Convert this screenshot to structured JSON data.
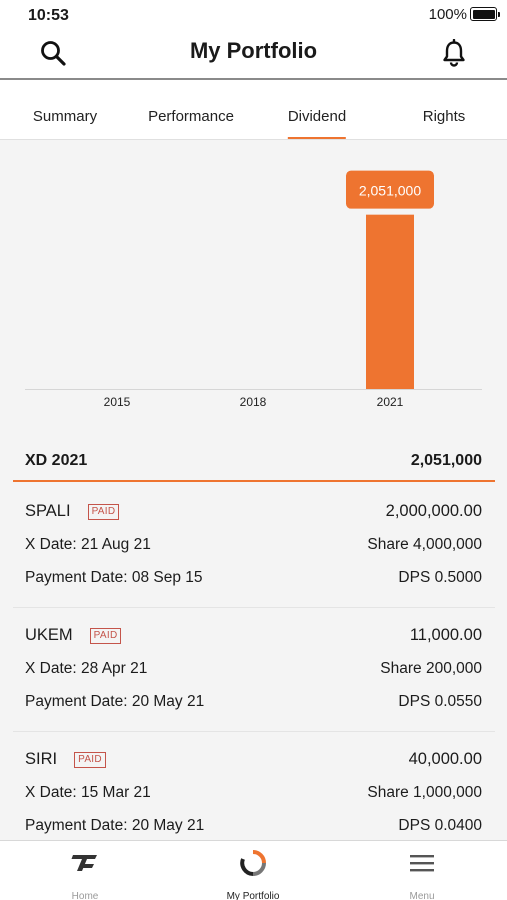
{
  "status_bar": {
    "time": "10:53",
    "battery_text": "100%"
  },
  "header": {
    "title": "My Portfolio"
  },
  "tabs": [
    {
      "label": "Summary",
      "active": false
    },
    {
      "label": "Performance",
      "active": false
    },
    {
      "label": "Dividend",
      "active": true
    },
    {
      "label": "Rights",
      "active": false
    }
  ],
  "chart_data": {
    "type": "bar",
    "categories": [
      "2015",
      "2018",
      "2021"
    ],
    "values": [
      0,
      0,
      2051000
    ],
    "value_labels": [
      "",
      "",
      "2,051,000"
    ],
    "highlighted_index": 2,
    "ylim": [
      0,
      2200000
    ],
    "bar_color": "#ee7430",
    "grid": false,
    "title": "",
    "xlabel": "",
    "ylabel": ""
  },
  "summary": {
    "label": "XD 2021",
    "total": "2,051,000"
  },
  "dividends": [
    {
      "symbol": "SPALI",
      "status": "PAID",
      "amount": "2,000,000.00",
      "x_date": "X Date: 21 Aug 21",
      "share": "Share 4,000,000",
      "payment_date": "Payment Date: 08 Sep 15",
      "dps": "DPS 0.5000"
    },
    {
      "symbol": "UKEM",
      "status": "PAID",
      "amount": "11,000.00",
      "x_date": "X Date: 28 Apr 21",
      "share": "Share 200,000",
      "payment_date": "Payment Date: 20 May 21",
      "dps": "DPS 0.0550"
    },
    {
      "symbol": "SIRI",
      "status": "PAID",
      "amount": "40,000.00",
      "x_date": "X Date: 15 Mar 21",
      "share": "Share 1,000,000",
      "payment_date": "Payment Date: 20 May 21",
      "dps": "DPS 0.0400"
    }
  ],
  "bottom_nav": [
    {
      "label": "Home",
      "icon": "home-logo-icon",
      "active": false
    },
    {
      "label": "My Portfolio",
      "icon": "portfolio-donut-icon",
      "active": true
    },
    {
      "label": "Menu",
      "icon": "hamburger-menu-icon",
      "active": false
    }
  ],
  "colors": {
    "accent": "#ee7430",
    "badge": "#c4544a"
  }
}
